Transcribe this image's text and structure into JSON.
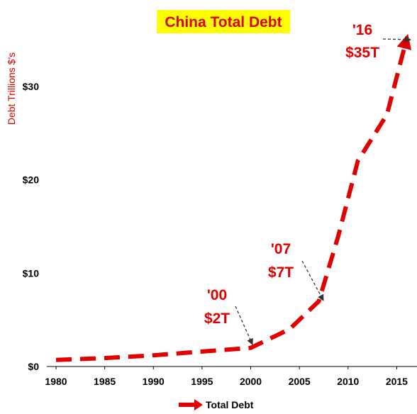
{
  "chart_data": {
    "type": "line",
    "title": "China Total Debt",
    "ylabel": "Debt Trillions $'s",
    "xlabel": "",
    "xlim": [
      1980,
      2016.5
    ],
    "ylim": [
      0,
      35
    ],
    "x_ticks": [
      1980,
      1985,
      1990,
      1995,
      2000,
      2005,
      2010,
      2015
    ],
    "y_ticks": [
      {
        "value": 0,
        "label": "$0"
      },
      {
        "value": 10,
        "label": "$10"
      },
      {
        "value": 20,
        "label": "$20"
      },
      {
        "value": 30,
        "label": "$30"
      }
    ],
    "grid": false,
    "legend": "bottom",
    "series": [
      {
        "name": "Total Debt",
        "color": "#e00000",
        "x": [
          1980,
          1985,
          1990,
          1995,
          2000,
          2004,
          2007,
          2009,
          2011,
          2014,
          2016
        ],
        "y": [
          0.7,
          0.9,
          1.2,
          1.6,
          2.0,
          4.0,
          7.0,
          14.0,
          22.0,
          27.0,
          35.0
        ]
      }
    ],
    "annotations": [
      {
        "line1": "'00",
        "line2": "$2T",
        "point": {
          "x": 2000,
          "y": 2.0
        }
      },
      {
        "line1": "'07",
        "line2": "$7T",
        "point": {
          "x": 2007,
          "y": 7.0
        }
      },
      {
        "line1": "'16",
        "line2": "$35T",
        "point": {
          "x": 2016,
          "y": 35.0
        }
      }
    ]
  },
  "colors": {
    "title_bg": "#ffff00",
    "accent": "#e00000"
  }
}
